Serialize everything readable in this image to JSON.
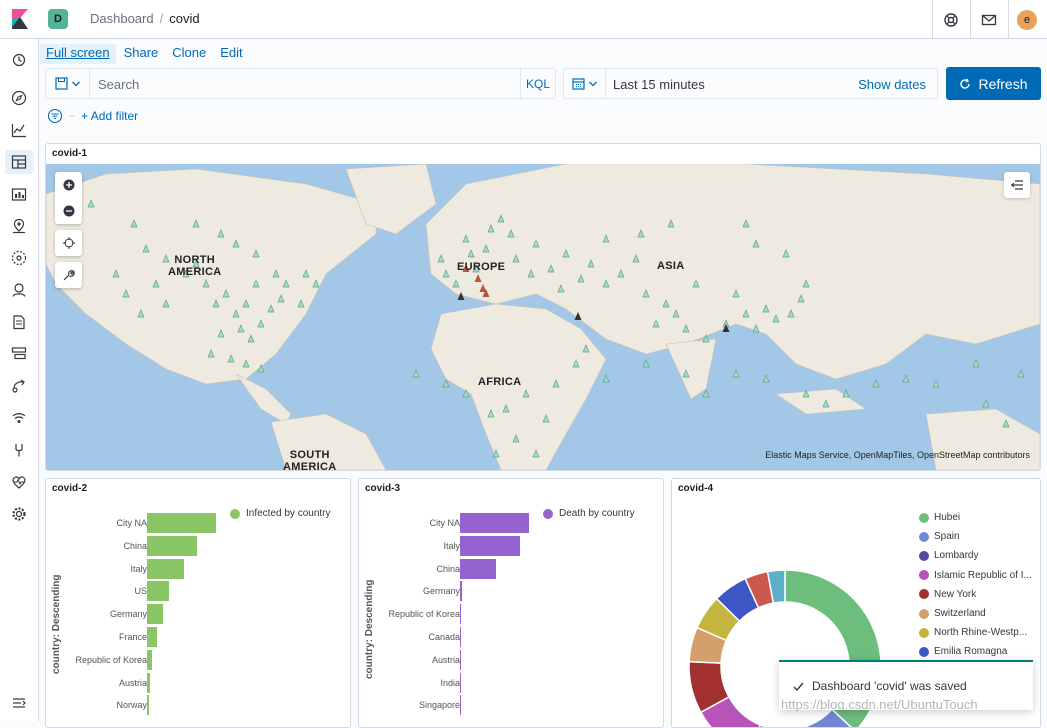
{
  "header": {
    "space_initial": "D",
    "space_color": "#54b399",
    "breadcrumb_parent": "Dashboard",
    "breadcrumb_separator": "/",
    "breadcrumb_current": "covid",
    "user_initial": "e",
    "user_color": "#e7a35c"
  },
  "menu": {
    "full_screen": "Full screen",
    "share": "Share",
    "clone": "Clone",
    "edit": "Edit"
  },
  "query": {
    "placeholder": "Search",
    "language": "KQL"
  },
  "date": {
    "range": "Last 15 minutes",
    "show_dates": "Show dates"
  },
  "refresh_label": "Refresh",
  "filter": {
    "separator": "–",
    "add_filter": "+ Add filter"
  },
  "map_panel": {
    "title": "covid-1",
    "labels": {
      "north_america": "NORTH\nAMERICA",
      "south_america": "SOUTH\nAMERICA",
      "europe": "EUROPE",
      "africa": "AFRICA",
      "asia": "ASIA"
    },
    "attribution": "Elastic Maps Service, OpenMapTiles, OpenStreetMap contributors"
  },
  "panel2": {
    "title": "covid-2",
    "legend": "Infected by country",
    "legend_color": "#8ac666",
    "axis_title": "country: Descending"
  },
  "panel3": {
    "title": "covid-3",
    "legend": "Death by country",
    "legend_color": "#9563cf",
    "axis_title": "country: Descending"
  },
  "panel4": {
    "title": "covid-4",
    "legend": [
      {
        "label": "Hubei",
        "color": "#6dbd7d"
      },
      {
        "label": "Spain",
        "color": "#6e88d4"
      },
      {
        "label": "Lombardy",
        "color": "#5a44a5"
      },
      {
        "label": "Islamic Republic of I...",
        "color": "#b853b9"
      },
      {
        "label": "New York",
        "color": "#a2302e"
      },
      {
        "label": "Switzerland",
        "color": "#d59f6b"
      },
      {
        "label": "North Rhine-Westp...",
        "color": "#c4b53f"
      },
      {
        "label": "Emilia Romagna",
        "color": "#3d57c5"
      }
    ]
  },
  "toast": {
    "message": "Dashboard 'covid' was saved"
  },
  "watermark": "https://blog.csdn.net/UbuntuTouch",
  "chart_data": [
    {
      "type": "bar",
      "orientation": "horizontal",
      "title": "",
      "series": [
        {
          "name": "Infected by country",
          "values": [
            67000,
            49000,
            36000,
            21000,
            16000,
            10000,
            5000,
            2500,
            1500
          ]
        }
      ],
      "categories": [
        "City NA",
        "China",
        "Italy",
        "US",
        "Germany",
        "France",
        "Republic of Korea",
        "Austria",
        "Norway"
      ],
      "ylabel": "country: Descending",
      "xlim": [
        0,
        70000
      ]
    },
    {
      "type": "bar",
      "orientation": "horizontal",
      "title": "",
      "series": [
        {
          "name": "Death by country",
          "values": [
            67000,
            58000,
            35000,
            1500,
            1000,
            0,
            0,
            0,
            0
          ]
        }
      ],
      "categories": [
        "City NA",
        "Italy",
        "China",
        "Germany",
        "Republic of Korea",
        "Canada",
        "Austria",
        "India",
        "Singapore"
      ],
      "ylabel": "country: Descending",
      "xlim": [
        0,
        70000
      ]
    },
    {
      "type": "pie",
      "donut": true,
      "title": "",
      "slices": [
        {
          "name": "Hubei",
          "value": 38,
          "color": "#6dbd7d"
        },
        {
          "name": "Spain",
          "value": 14,
          "color": "#6e88d4"
        },
        {
          "name": "Lombardy",
          "value": 6,
          "color": "#5a44a5"
        },
        {
          "name": "Islamic Republic of I...",
          "value": 11,
          "color": "#b853b9"
        },
        {
          "name": "New York",
          "value": 9,
          "color": "#a2302e"
        },
        {
          "name": "Switzerland",
          "value": 6,
          "color": "#d59f6b"
        },
        {
          "name": "North Rhine-Westp...",
          "value": 6,
          "color": "#c4b53f"
        },
        {
          "name": "Emilia Romagna",
          "value": 6,
          "color": "#3d57c5"
        },
        {
          "name": "",
          "value": 4,
          "color": "#c9584e"
        },
        {
          "name": "",
          "value": 3,
          "color": "#5bb0c7"
        }
      ]
    }
  ]
}
